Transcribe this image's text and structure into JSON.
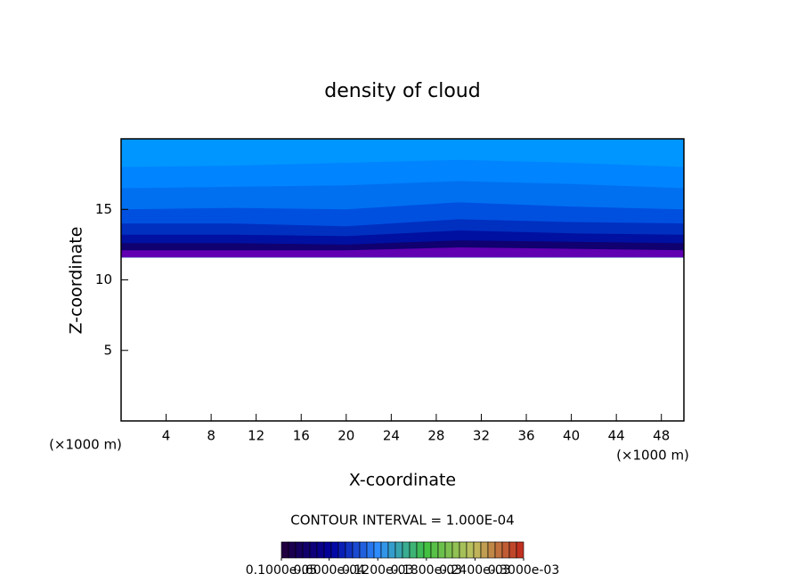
{
  "chart_data": {
    "type": "contour",
    "title": "density of cloud",
    "xlabel": "X-coordinate",
    "ylabel": "Z-coordinate",
    "y_unit": "(×1000 m)",
    "x_unit": "(×1000 m)",
    "xlim": [
      0,
      50
    ],
    "ylim": [
      0,
      20
    ],
    "xticks": [
      4,
      8,
      12,
      16,
      20,
      24,
      28,
      32,
      36,
      40,
      44,
      48
    ],
    "yticks": [
      5,
      10,
      15
    ],
    "x": [
      0,
      10,
      20,
      30,
      40,
      50
    ],
    "base": [
      11.6,
      11.6,
      11.6,
      11.6,
      11.6,
      11.6
    ],
    "bands": [
      {
        "color": "#0096ff",
        "top": [
          20,
          20,
          20,
          20,
          20,
          20
        ]
      },
      {
        "color": "#0084ff",
        "top": [
          18.0,
          18.1,
          18.3,
          18.5,
          18.3,
          18.0
        ]
      },
      {
        "color": "#0070f0",
        "top": [
          16.5,
          16.6,
          16.7,
          17.0,
          16.8,
          16.5
        ]
      },
      {
        "color": "#0050e0",
        "top": [
          15.0,
          15.1,
          15.0,
          15.5,
          15.2,
          15.0
        ]
      },
      {
        "color": "#0030c0",
        "top": [
          14.0,
          14.0,
          13.8,
          14.3,
          14.1,
          14.0
        ]
      },
      {
        "color": "#0010a0",
        "top": [
          13.2,
          13.2,
          13.1,
          13.5,
          13.3,
          13.2
        ]
      },
      {
        "color": "#100070",
        "top": [
          12.6,
          12.6,
          12.5,
          12.8,
          12.7,
          12.6
        ]
      },
      {
        "color": "#6000b0",
        "top": [
          12.1,
          12.1,
          12.1,
          12.3,
          12.2,
          12.1
        ]
      }
    ],
    "contour_interval": "CONTOUR INTERVAL = 1.000E-04",
    "colorbar": {
      "colors": [
        "#200040",
        "#0000a0",
        "#3090ff",
        "#40c040",
        "#c0c060",
        "#c03020"
      ],
      "clim": [
        1e-06,
        0.0003
      ],
      "ticks": [
        {
          "value": 1e-06,
          "label": "0.1000e-05"
        },
        {
          "value": 6e-05,
          "label": "0.6000e-04"
        },
        {
          "value": 0.00012,
          "label": "0.1200e-03"
        },
        {
          "value": 0.00018,
          "label": "0.1800e-03"
        },
        {
          "value": 0.00024,
          "label": "0.2400e-03"
        },
        {
          "value": 0.0003,
          "label": "0.3000e-03"
        }
      ]
    }
  }
}
